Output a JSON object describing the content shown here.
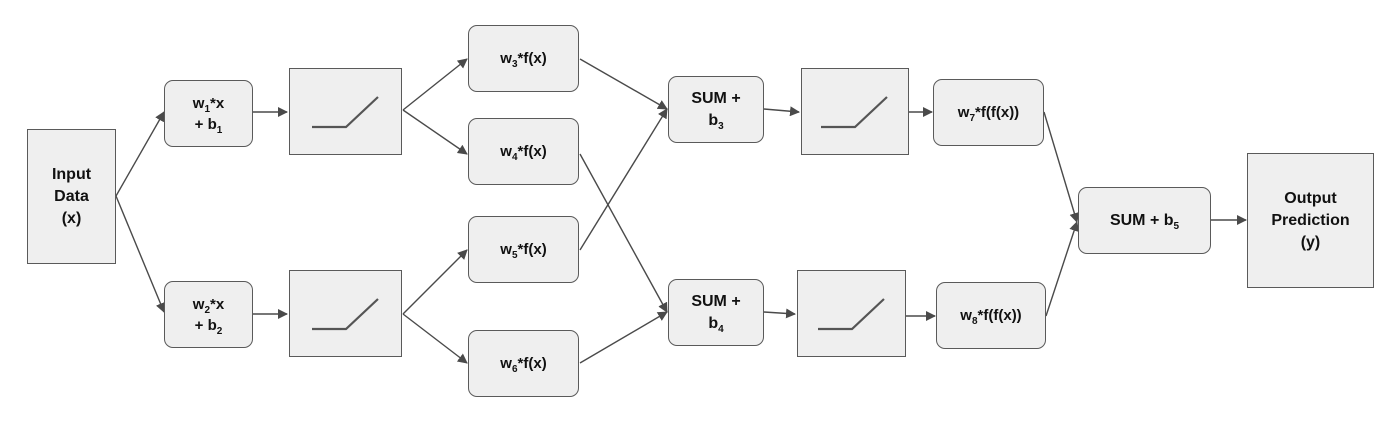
{
  "input": {
    "line1": "Input",
    "line2": "Data",
    "line3": "(x)"
  },
  "hidden1": {
    "top": {
      "pre": "w",
      "sub1": "1",
      "mid": "*x",
      "line2": "+ b",
      "sub2": "1"
    },
    "bottom": {
      "pre": "w",
      "sub1": "2",
      "mid": "*x",
      "line2": "+ b",
      "sub2": "2"
    }
  },
  "weights2": [
    {
      "pre": "w",
      "sub": "3",
      "post": "*f(x)"
    },
    {
      "pre": "w",
      "sub": "4",
      "post": "*f(x)"
    },
    {
      "pre": "w",
      "sub": "5",
      "post": "*f(x)"
    },
    {
      "pre": "w",
      "sub": "6",
      "post": "*f(x)"
    }
  ],
  "sum_nodes": [
    {
      "line1": "SUM +",
      "pre": "b",
      "sub": "3"
    },
    {
      "line1": "SUM +",
      "pre": "b",
      "sub": "4"
    }
  ],
  "weights3": [
    {
      "pre": "w",
      "sub": "7",
      "post": "*f(f(x))"
    },
    {
      "pre": "w",
      "sub": "8",
      "post": "*f(f(x))"
    }
  ],
  "final_sum": {
    "pre": "SUM + b",
    "sub": "5"
  },
  "output": {
    "line1": "Output",
    "line2": "Prediction",
    "line3": "(y)"
  },
  "colors": {
    "node_fill": "#efefef",
    "node_border": "#5a5a5a",
    "arrow": "#4a4a4a",
    "relu_line": "#555555"
  },
  "icons": {
    "activation": "relu-curve-icon"
  }
}
